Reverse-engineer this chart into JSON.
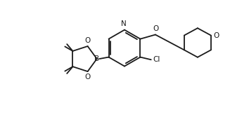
{
  "line_color": "#1a1a1a",
  "bg_color": "#ffffff",
  "line_width": 1.3,
  "font_size": 7.0,
  "fig_width": 3.54,
  "fig_height": 1.8,
  "dpi": 100,
  "xlim": [
    -0.5,
    10.5
  ],
  "ylim": [
    -0.3,
    5.5
  ]
}
